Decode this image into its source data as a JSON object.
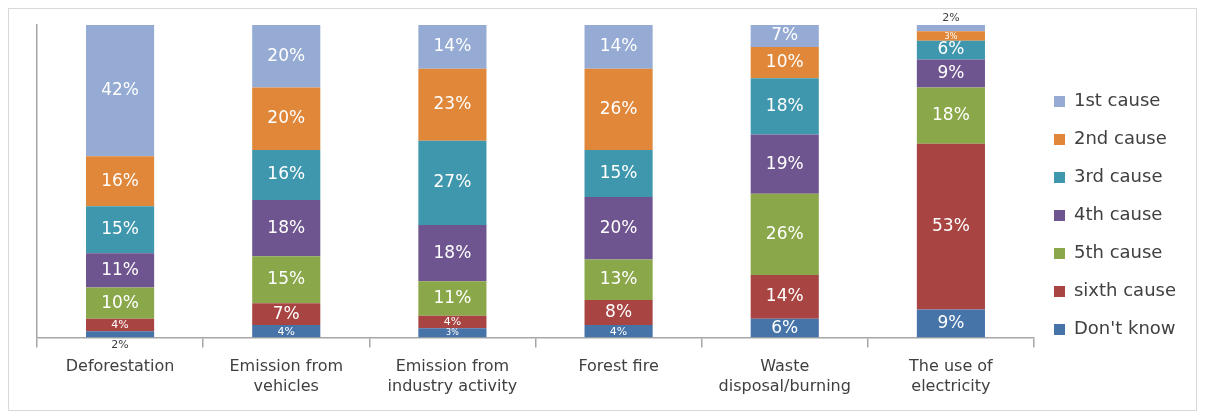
{
  "chart_data": {
    "type": "bar",
    "stacked": true,
    "legend": "right",
    "categories": [
      "Deforestation",
      "Emission from vehicles",
      "Emission from industry activity",
      "Forest fire",
      "Waste disposal/burning",
      "The use of electricity"
    ],
    "series": [
      {
        "name": "Don't know",
        "color": "#4673a8",
        "values": [
          2,
          4,
          3,
          4,
          6,
          9
        ],
        "value_labels": [
          "2%",
          "4%",
          "3%",
          "4%",
          "6%",
          "9%"
        ]
      },
      {
        "name": "sixth cause",
        "color": "#a84543",
        "values": [
          4,
          7,
          4,
          8,
          14,
          53
        ],
        "value_labels": [
          "4%",
          "7%",
          "4%",
          "8%",
          "14%",
          "53%"
        ]
      },
      {
        "name": "5th cause",
        "color": "#8aa84a",
        "values": [
          10,
          15,
          11,
          13,
          26,
          18
        ],
        "value_labels": [
          "10%",
          "15%",
          "11%",
          "13%",
          "26%",
          "18%"
        ]
      },
      {
        "name": "4th cause",
        "color": "#6f5590",
        "values": [
          11,
          18,
          18,
          20,
          19,
          9
        ],
        "value_labels": [
          "11%",
          "18%",
          "18%",
          "20%",
          "19%",
          "9%"
        ]
      },
      {
        "name": "3rd cause",
        "color": "#3f97ae",
        "values": [
          15,
          16,
          27,
          15,
          18,
          6
        ],
        "value_labels": [
          "15%",
          "16%",
          "27%",
          "15%",
          "18%",
          "6%"
        ]
      },
      {
        "name": "2nd cause",
        "color": "#e0873a",
        "values": [
          16,
          20,
          23,
          26,
          10,
          3
        ],
        "value_labels": [
          "16%",
          "20%",
          "23%",
          "26%",
          "10%",
          "3%"
        ]
      },
      {
        "name": "1st cause",
        "color": "#95abd4",
        "values": [
          42,
          20,
          14,
          14,
          7,
          2
        ],
        "value_labels": [
          "42%",
          "20%",
          "14%",
          "14%",
          "7%",
          "2%"
        ]
      }
    ]
  }
}
